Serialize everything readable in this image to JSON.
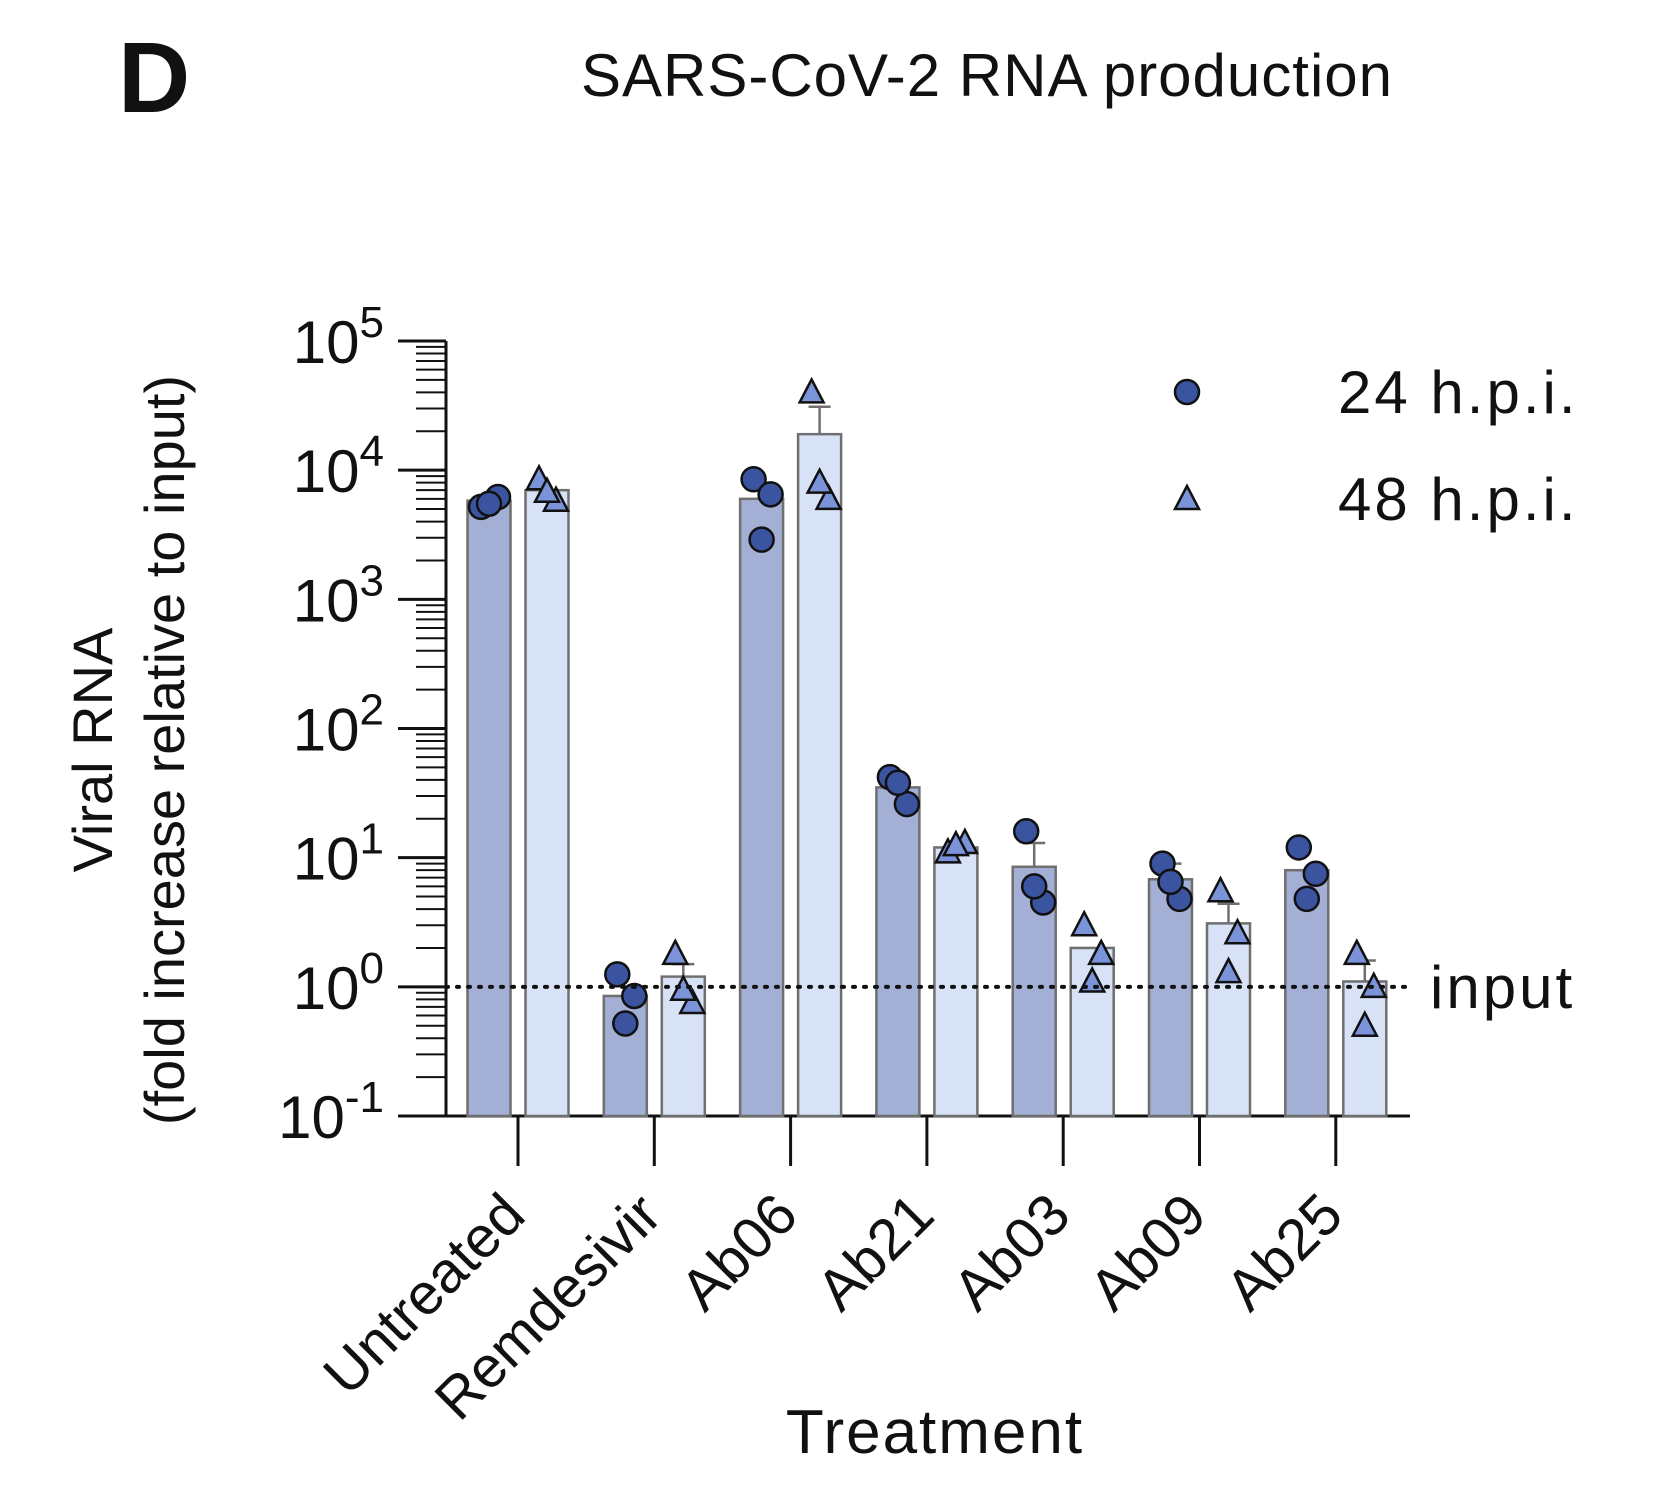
{
  "panel_label": "D",
  "chart_data": {
    "type": "bar",
    "title": "SARS-CoV-2 RNA production",
    "xlabel": "Treatment",
    "ylabel": [
      "Viral RNA",
      "(fold increase relative to input)"
    ],
    "yscale": "log10",
    "ylim": [
      0.1,
      100000
    ],
    "yticks": [
      {
        "base": "10",
        "exp": "-1"
      },
      {
        "base": "10",
        "exp": "0"
      },
      {
        "base": "10",
        "exp": "1"
      },
      {
        "base": "10",
        "exp": "2"
      },
      {
        "base": "10",
        "exp": "3"
      },
      {
        "base": "10",
        "exp": "4"
      },
      {
        "base": "10",
        "exp": "5"
      }
    ],
    "categories": [
      "Untreated",
      "Remdesivir",
      "Ab06",
      "Ab21",
      "Ab03",
      "Ab09",
      "Ab25"
    ],
    "series": [
      {
        "name": "24 h.p.i.",
        "marker": "circle",
        "bar_color": "#a3afd4",
        "marker_color": "#3b54a0",
        "values": [
          5800,
          0.85,
          6000,
          35,
          8.5,
          6.8,
          8
        ],
        "error_upper": [
          null,
          null,
          null,
          null,
          13,
          9,
          null
        ],
        "points": [
          [
            5200,
            6200,
            5500
          ],
          [
            1.25,
            0.85,
            0.52
          ],
          [
            8500,
            6500,
            2900
          ],
          [
            42,
            26,
            38
          ],
          [
            16,
            4.5,
            6
          ],
          [
            9,
            4.8,
            6.5
          ],
          [
            12,
            7.5,
            4.8
          ]
        ]
      },
      {
        "name": "48 h.p.i.",
        "marker": "triangle",
        "bar_color": "#d8e2f7",
        "marker_color": "#7b93d9",
        "values": [
          7000,
          1.2,
          19000,
          12,
          2.0,
          3.1,
          1.1
        ],
        "error_upper": [
          null,
          1.5,
          31000,
          null,
          null,
          4.4,
          1.6
        ],
        "points": [
          [
            8500,
            5800,
            6800
          ],
          [
            1.8,
            0.75,
            0.95
          ],
          [
            40000,
            6000,
            8000
          ],
          [
            11,
            13,
            12.5
          ],
          [
            3.0,
            1.8,
            1.1
          ],
          [
            5.5,
            2.6,
            1.3
          ],
          [
            1.8,
            1.0,
            0.5
          ]
        ]
      }
    ],
    "reference_line": {
      "value": 1,
      "label": "input",
      "style": "dotted"
    },
    "legend": {
      "position": "top-right",
      "entries": [
        "24 h.p.i.",
        "48 h.p.i."
      ]
    }
  }
}
